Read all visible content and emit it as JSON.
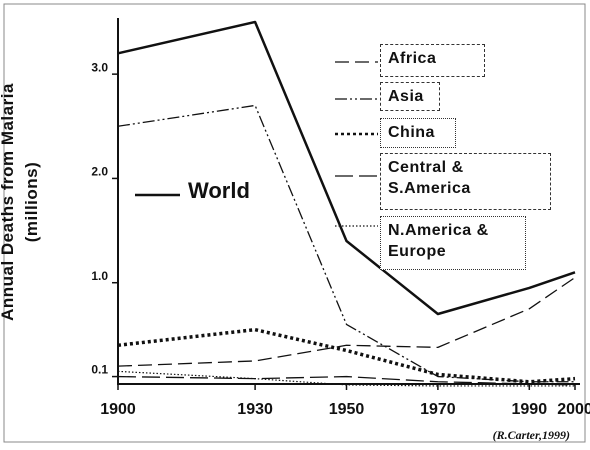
{
  "chart_data": {
    "type": "line",
    "ylabel": "Annual Deaths from Malaria (millions)",
    "source": "(R.Carter,1999)",
    "x": [
      1900,
      1930,
      1950,
      1970,
      1990,
      2000
    ],
    "xlim": [
      1900,
      2000
    ],
    "xticks": [
      1900,
      1930,
      1950,
      1970,
      1990,
      2000
    ],
    "ylim": [
      0,
      3.5
    ],
    "yticks": [
      0.1,
      {
        "value": 1,
        "label": "1.0"
      },
      {
        "value": 2,
        "label": "2.0"
      },
      {
        "value": 3,
        "label": "3.0"
      }
    ],
    "series": [
      {
        "name": "World",
        "color": "#111111",
        "linestyle": "solid",
        "values": [
          3.2,
          3.5,
          1.4,
          0.7,
          0.95,
          1.1
        ]
      },
      {
        "name": "Africa",
        "color": "#111111",
        "linestyle": "dashed",
        "values": [
          0.2,
          0.25,
          0.4,
          0.38,
          0.75,
          1.05
        ]
      },
      {
        "name": "Asia",
        "color": "#111111",
        "linestyle": "dashdotdot",
        "values": [
          2.5,
          2.7,
          0.6,
          0.1,
          0.05,
          0.05
        ]
      },
      {
        "name": "China",
        "color": "#111111",
        "linestyle": "dotted",
        "values": [
          0.4,
          0.55,
          0.35,
          0.12,
          0.05,
          0.08
        ]
      },
      {
        "name": "Central & S.America",
        "color": "#111111",
        "linestyle": "longdash",
        "values": [
          0.1,
          0.08,
          0.1,
          0.05,
          0.03,
          0.02
        ]
      },
      {
        "name": "N.America & Europe",
        "color": "#111111",
        "linestyle": "finedotted",
        "values": [
          0.15,
          0.08,
          0.02,
          0.01,
          0.01,
          0.01
        ]
      }
    ]
  }
}
